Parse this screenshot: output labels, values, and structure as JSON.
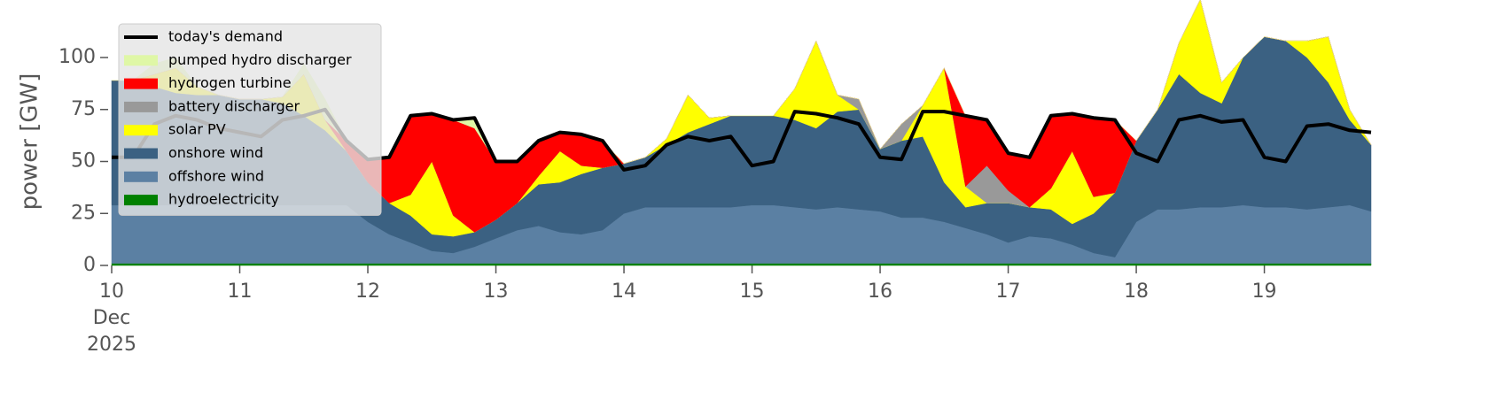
{
  "chart_data": {
    "type": "stacked-area",
    "ylabel": "power [GW]",
    "x": [
      "2025-12-10T00:00",
      "2025-12-10T04:00",
      "2025-12-10T08:00",
      "2025-12-10T12:00",
      "2025-12-10T16:00",
      "2025-12-10T20:00",
      "2025-12-11T00:00",
      "2025-12-11T04:00",
      "2025-12-11T08:00",
      "2025-12-11T12:00",
      "2025-12-11T16:00",
      "2025-12-11T20:00",
      "2025-12-12T00:00",
      "2025-12-12T04:00",
      "2025-12-12T08:00",
      "2025-12-12T12:00",
      "2025-12-12T16:00",
      "2025-12-12T20:00",
      "2025-12-13T00:00",
      "2025-12-13T04:00",
      "2025-12-13T08:00",
      "2025-12-13T12:00",
      "2025-12-13T16:00",
      "2025-12-13T20:00",
      "2025-12-14T00:00",
      "2025-12-14T04:00",
      "2025-12-14T08:00",
      "2025-12-14T12:00",
      "2025-12-14T16:00",
      "2025-12-14T20:00",
      "2025-12-15T00:00",
      "2025-12-15T04:00",
      "2025-12-15T08:00",
      "2025-12-15T12:00",
      "2025-12-15T16:00",
      "2025-12-15T20:00",
      "2025-12-16T00:00",
      "2025-12-16T04:00",
      "2025-12-16T08:00",
      "2025-12-16T12:00",
      "2025-12-16T16:00",
      "2025-12-16T20:00",
      "2025-12-17T00:00",
      "2025-12-17T04:00",
      "2025-12-17T08:00",
      "2025-12-17T12:00",
      "2025-12-17T16:00",
      "2025-12-17T20:00",
      "2025-12-18T00:00",
      "2025-12-18T04:00",
      "2025-12-18T08:00",
      "2025-12-18T12:00",
      "2025-12-18T16:00",
      "2025-12-18T20:00",
      "2025-12-19T00:00",
      "2025-12-19T04:00",
      "2025-12-19T08:00",
      "2025-12-19T12:00",
      "2025-12-19T16:00",
      "2025-12-19T20:00"
    ],
    "xlim": [
      "2025-12-10T00:00",
      "2025-12-19T20:00"
    ],
    "xticks": [
      {
        "value": "2025-12-10T00:00",
        "label": "10"
      },
      {
        "value": "2025-12-11T00:00",
        "label": "11"
      },
      {
        "value": "2025-12-12T00:00",
        "label": "12"
      },
      {
        "value": "2025-12-13T00:00",
        "label": "13"
      },
      {
        "value": "2025-12-14T00:00",
        "label": "14"
      },
      {
        "value": "2025-12-15T00:00",
        "label": "15"
      },
      {
        "value": "2025-12-16T00:00",
        "label": "16"
      },
      {
        "value": "2025-12-17T00:00",
        "label": "17"
      },
      {
        "value": "2025-12-18T00:00",
        "label": "18"
      },
      {
        "value": "2025-12-19T00:00",
        "label": "19"
      }
    ],
    "xtick_month": "Dec",
    "xtick_year": "2025",
    "ylim": [
      0,
      120
    ],
    "yticks": [
      0,
      25,
      50,
      75,
      100
    ],
    "legend": "upper left",
    "line": {
      "name": "today's demand",
      "color": "#000000",
      "values": [
        52,
        52,
        68,
        72,
        70,
        66,
        64,
        62,
        70,
        72,
        75,
        60,
        51,
        52,
        72,
        73,
        70,
        71,
        50,
        50,
        60,
        64,
        63,
        60,
        46,
        48,
        58,
        62,
        60,
        62,
        48,
        50,
        74,
        73,
        71,
        68,
        52,
        51,
        74,
        74,
        72,
        70,
        54,
        52,
        72,
        73,
        71,
        70,
        54,
        50,
        70,
        72,
        69,
        70,
        52,
        50,
        67,
        68,
        65,
        64
      ]
    },
    "series": [
      {
        "name": "pumped hydro discharger",
        "color": "#dff7a6",
        "values": [
          0,
          0,
          5,
          5,
          0,
          0,
          0,
          0,
          0,
          5,
          10,
          0,
          0,
          0,
          0,
          0,
          0,
          5,
          0,
          0,
          0,
          0,
          0,
          0,
          0,
          0,
          0,
          0,
          0,
          0,
          0,
          0,
          0,
          0,
          0,
          0,
          0,
          0,
          0,
          0,
          0,
          0,
          0,
          0,
          0,
          0,
          0,
          0,
          0,
          0,
          0,
          0,
          0,
          0,
          0,
          0,
          0,
          0,
          0,
          0
        ]
      },
      {
        "name": "hydrogen turbine",
        "color": "#ff0000",
        "values": [
          0,
          0,
          0,
          0,
          0,
          0,
          0,
          0,
          0,
          0,
          0,
          5,
          11,
          22,
          38,
          23,
          46,
          50,
          28,
          20,
          17,
          9,
          15,
          13,
          0,
          0,
          0,
          0,
          0,
          0,
          0,
          0,
          0,
          0,
          0,
          0,
          0,
          0,
          0,
          0,
          34,
          22,
          18,
          24,
          35,
          18,
          38,
          35,
          0,
          0,
          0,
          0,
          0,
          0,
          0,
          0,
          0,
          0,
          0,
          0
        ]
      },
      {
        "name": "battery discharger",
        "color": "#999999",
        "values": [
          0,
          0,
          0,
          0,
          0,
          0,
          0,
          0,
          0,
          0,
          0,
          0,
          0,
          0,
          0,
          0,
          0,
          0,
          0,
          0,
          0,
          0,
          0,
          0,
          0,
          0,
          0,
          0,
          0,
          0,
          0,
          0,
          0,
          0,
          0,
          5,
          0,
          8,
          0,
          0,
          0,
          18,
          6,
          0,
          0,
          0,
          0,
          0,
          0,
          0,
          0,
          0,
          0,
          0,
          0,
          0,
          0,
          0,
          0,
          0
        ]
      },
      {
        "name": "solar PV",
        "color": "#ffff00",
        "values": [
          0,
          0,
          6,
          12,
          4,
          0,
          0,
          0,
          3,
          20,
          5,
          0,
          0,
          0,
          10,
          35,
          10,
          0,
          0,
          0,
          4,
          15,
          4,
          0,
          0,
          0,
          3,
          18,
          3,
          0,
          0,
          0,
          15,
          42,
          8,
          0,
          0,
          0,
          15,
          55,
          10,
          0,
          0,
          0,
          10,
          35,
          8,
          0,
          0,
          0,
          15,
          45,
          10,
          0,
          0,
          0,
          8,
          22,
          5,
          0
        ]
      },
      {
        "name": "onshore wind",
        "color": "#3b6182",
        "values": [
          60,
          60,
          57,
          54,
          53,
          53,
          51,
          51,
          49,
          43,
          36,
          26,
          19,
          15,
          13,
          8,
          8,
          7,
          9,
          13,
          20,
          24,
          29,
          30,
          24,
          24,
          30,
          36,
          40,
          44,
          43,
          43,
          42,
          39,
          46,
          48,
          30,
          37,
          39,
          19,
          10,
          15,
          19,
          14,
          14,
          10,
          19,
          31,
          39,
          48,
          65,
          55,
          50,
          71,
          82,
          80,
          73,
          60,
          41,
          32
        ]
      },
      {
        "name": "offshore wind",
        "color": "#5b80a3",
        "values": [
          28,
          28,
          28,
          28,
          28,
          28,
          28,
          28,
          28,
          28,
          28,
          28,
          20,
          14,
          10,
          6,
          5,
          8,
          12,
          16,
          18,
          15,
          14,
          16,
          24,
          27,
          27,
          27,
          27,
          27,
          28,
          28,
          27,
          26,
          27,
          26,
          25,
          22,
          22,
          20,
          17,
          14,
          10,
          13,
          12,
          9,
          5,
          3,
          20,
          26,
          26,
          27,
          27,
          28,
          27,
          27,
          26,
          27,
          28,
          25
        ]
      },
      {
        "name": "hydroelectricity",
        "color": "#008000",
        "values": [
          1,
          1,
          1,
          1,
          1,
          1,
          1,
          1,
          1,
          1,
          1,
          1,
          1,
          1,
          1,
          1,
          1,
          1,
          1,
          1,
          1,
          1,
          1,
          1,
          1,
          1,
          1,
          1,
          1,
          1,
          1,
          1,
          1,
          1,
          1,
          1,
          1,
          1,
          1,
          1,
          1,
          1,
          1,
          1,
          1,
          1,
          1,
          1,
          1,
          1,
          1,
          1,
          1,
          1,
          1,
          1,
          1,
          1,
          1,
          1
        ]
      }
    ]
  }
}
